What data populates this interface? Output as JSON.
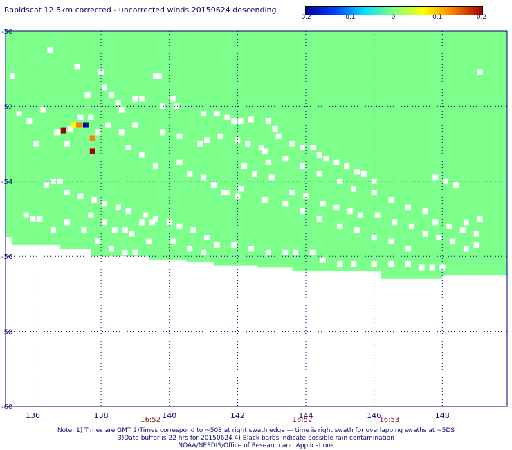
{
  "title": "Rapidscat 12.5km corrected - uncorrected winds 20150624 descending",
  "colorbar": {
    "ticks": [
      "-0.2",
      "-0.1",
      "0",
      "0.1",
      "0.2"
    ],
    "colors": [
      "#0000a0",
      "#0040ff",
      "#00e0ff",
      "#80ff80",
      "#ffff00",
      "#ff8000",
      "#a00000"
    ]
  },
  "chart_data": {
    "type": "heatmap",
    "xlim": [
      135.2,
      149.9
    ],
    "ylim": [
      -60,
      -50
    ],
    "x_ticks": [
      "136",
      "138",
      "140",
      "142",
      "144",
      "146",
      "148"
    ],
    "y_ticks": [
      "-50",
      "-52",
      "-54",
      "-56",
      "-58",
      "-60"
    ],
    "grid": true,
    "background_value": 0,
    "coverage_lower_edge": [
      [
        135.2,
        -55.5
      ],
      [
        135.4,
        -55.5
      ],
      [
        135.4,
        -55.7
      ],
      [
        136.8,
        -55.7
      ],
      [
        136.8,
        -55.8
      ],
      [
        137.7,
        -55.8
      ],
      [
        137.7,
        -56.0
      ],
      [
        139.4,
        -56.0
      ],
      [
        139.4,
        -56.1
      ],
      [
        140.5,
        -56.1
      ],
      [
        140.5,
        -56.15
      ],
      [
        141.3,
        -56.15
      ],
      [
        141.3,
        -56.25
      ],
      [
        142.6,
        -56.25
      ],
      [
        142.6,
        -56.3
      ],
      [
        143.6,
        -56.3
      ],
      [
        143.6,
        -56.4
      ],
      [
        146.2,
        -56.4
      ],
      [
        146.2,
        -56.6
      ],
      [
        148.0,
        -56.6
      ],
      [
        148.0,
        -56.5
      ],
      [
        149.9,
        -56.5
      ]
    ],
    "missing_cells": [
      [
        135.4,
        -51.2
      ],
      [
        136.5,
        -50.5
      ],
      [
        137.3,
        -50.95
      ],
      [
        138.0,
        -51.1
      ],
      [
        138.1,
        -51.5
      ],
      [
        137.6,
        -51.7
      ],
      [
        137.7,
        -52.3
      ],
      [
        138.3,
        -51.7
      ],
      [
        138.5,
        -51.9
      ],
      [
        138.6,
        -52.1
      ],
      [
        139.0,
        -51.8
      ],
      [
        139.2,
        -51.8
      ],
      [
        139.6,
        -51.2
      ],
      [
        139.7,
        -51.2
      ],
      [
        139.8,
        -52.0
      ],
      [
        140.1,
        -51.8
      ],
      [
        140.2,
        -52.0
      ],
      [
        141.0,
        -52.2
      ],
      [
        141.4,
        -52.2
      ],
      [
        141.7,
        -52.3
      ],
      [
        141.9,
        -52.4
      ],
      [
        142.1,
        -52.4
      ],
      [
        142.4,
        -52.35
      ],
      [
        142.9,
        -52.4
      ],
      [
        143.1,
        -52.6
      ],
      [
        143.2,
        -52.8
      ],
      [
        143.6,
        -53.0
      ],
      [
        143.9,
        -53.1
      ],
      [
        144.2,
        -53.1
      ],
      [
        144.4,
        -53.3
      ],
      [
        144.6,
        -53.4
      ],
      [
        144.9,
        -53.5
      ],
      [
        145.2,
        -53.6
      ],
      [
        145.5,
        -53.75
      ],
      [
        145.7,
        -53.8
      ],
      [
        146.0,
        -54.0
      ],
      [
        147.8,
        -53.9
      ],
      [
        148.1,
        -54.0
      ],
      [
        148.4,
        -54.1
      ],
      [
        149.1,
        -51.1
      ],
      [
        135.6,
        -52.2
      ],
      [
        135.9,
        -52.4
      ],
      [
        136.3,
        -52.1
      ],
      [
        136.1,
        -53.0
      ],
      [
        136.4,
        -54.1
      ],
      [
        136.6,
        -54.0
      ],
      [
        136.8,
        -54.0
      ],
      [
        137.0,
        -54.3
      ],
      [
        137.4,
        -54.4
      ],
      [
        137.8,
        -54.5
      ],
      [
        138.1,
        -54.6
      ],
      [
        138.5,
        -54.7
      ],
      [
        138.8,
        -54.8
      ],
      [
        139.3,
        -54.9
      ],
      [
        139.6,
        -55.0
      ],
      [
        140.0,
        -55.1
      ],
      [
        140.3,
        -55.2
      ],
      [
        140.7,
        -55.3
      ],
      [
        141.1,
        -55.5
      ],
      [
        141.4,
        -55.7
      ],
      [
        141.9,
        -55.7
      ],
      [
        142.4,
        -55.8
      ],
      [
        142.9,
        -55.9
      ],
      [
        143.4,
        -55.9
      ],
      [
        143.7,
        -55.9
      ],
      [
        144.2,
        -55.9
      ],
      [
        144.5,
        -56.1
      ],
      [
        145.0,
        -56.2
      ],
      [
        145.4,
        -56.2
      ],
      [
        146.0,
        -56.2
      ],
      [
        146.5,
        -56.2
      ],
      [
        147.0,
        -56.2
      ],
      [
        147.4,
        -56.3
      ],
      [
        147.7,
        -56.3
      ],
      [
        148.0,
        -56.3
      ],
      [
        148.7,
        -55.8
      ],
      [
        149.0,
        -55.7
      ],
      [
        135.8,
        -54.9
      ],
      [
        136.0,
        -55.0
      ],
      [
        136.2,
        -55.0
      ],
      [
        136.6,
        -55.3
      ],
      [
        137.0,
        -55.1
      ],
      [
        137.5,
        -55.3
      ],
      [
        137.9,
        -55.6
      ],
      [
        138.3,
        -55.8
      ],
      [
        138.7,
        -55.9
      ],
      [
        139.0,
        -55.9
      ],
      [
        138.7,
        -55.3
      ],
      [
        139.2,
        -55.1
      ],
      [
        139.5,
        -55.1
      ],
      [
        140.1,
        -55.6
      ],
      [
        140.6,
        -55.8
      ],
      [
        141.0,
        -55.9
      ],
      [
        141.7,
        -54.3
      ],
      [
        142.1,
        -54.2
      ],
      [
        142.5,
        -53.8
      ],
      [
        143.0,
        -53.9
      ],
      [
        143.6,
        -54.3
      ],
      [
        144.0,
        -54.4
      ],
      [
        144.5,
        -54.6
      ],
      [
        144.9,
        -54.7
      ],
      [
        145.3,
        -54.8
      ],
      [
        145.6,
        -54.9
      ],
      [
        146.1,
        -54.9
      ],
      [
        146.6,
        -55.1
      ],
      [
        147.1,
        -55.2
      ],
      [
        147.5,
        -55.4
      ],
      [
        147.9,
        -55.5
      ],
      [
        148.3,
        -55.6
      ],
      [
        148.7,
        -55.1
      ],
      [
        149.1,
        -55.0
      ],
      [
        137.7,
        -54.9
      ],
      [
        138.1,
        -55.1
      ],
      [
        138.4,
        -55.3
      ],
      [
        138.9,
        -55.4
      ],
      [
        139.4,
        -55.6
      ],
      [
        140.3,
        -53.5
      ],
      [
        140.6,
        -53.8
      ],
      [
        141.0,
        -53.9
      ],
      [
        141.3,
        -54.1
      ],
      [
        141.6,
        -54.3
      ],
      [
        142.0,
        -54.4
      ],
      [
        142.8,
        -54.5
      ],
      [
        143.4,
        -54.6
      ],
      [
        143.9,
        -54.8
      ],
      [
        144.4,
        -55.0
      ],
      [
        145.0,
        -55.2
      ],
      [
        145.5,
        -55.3
      ],
      [
        146.0,
        -55.5
      ],
      [
        146.5,
        -55.6
      ],
      [
        147.0,
        -55.8
      ],
      [
        142.8,
        -53.2
      ],
      [
        143.4,
        -53.4
      ],
      [
        143.9,
        -53.6
      ],
      [
        144.4,
        -53.8
      ],
      [
        145.0,
        -54.0
      ],
      [
        145.4,
        -54.2
      ],
      [
        146.0,
        -54.3
      ],
      [
        146.5,
        -54.5
      ],
      [
        147.0,
        -54.7
      ],
      [
        147.5,
        -54.8
      ],
      [
        147.8,
        -55.1
      ],
      [
        148.2,
        -55.2
      ],
      [
        148.6,
        -55.3
      ],
      [
        149.0,
        -55.4
      ],
      [
        139.2,
        -53.3
      ],
      [
        139.6,
        -53.6
      ],
      [
        138.8,
        -53.1
      ],
      [
        138.6,
        -52.7
      ],
      [
        139.0,
        -52.5
      ],
      [
        138.2,
        -52.5
      ],
      [
        137.9,
        -52.7
      ],
      [
        137.4,
        -52.3
      ],
      [
        137.1,
        -52.6
      ],
      [
        136.7,
        -52.7
      ],
      [
        137.0,
        -53.0
      ],
      [
        139.8,
        -52.7
      ],
      [
        140.3,
        -52.8
      ],
      [
        140.9,
        -53.0
      ],
      [
        141.1,
        -52.9
      ],
      [
        141.5,
        -52.8
      ],
      [
        142.0,
        -52.9
      ],
      [
        142.3,
        -53.0
      ],
      [
        142.7,
        -53.1
      ],
      [
        142.2,
        -53.6
      ],
      [
        142.9,
        -53.5
      ]
    ],
    "anomaly_cells": [
      {
        "x": 137.2,
        "y": -52.5,
        "value": 0.05
      },
      {
        "x": 137.35,
        "y": -52.5,
        "value": 0.1
      },
      {
        "x": 137.55,
        "y": -52.5,
        "value": -0.18
      },
      {
        "x": 136.9,
        "y": -52.65,
        "value": 0.2
      },
      {
        "x": 137.75,
        "y": -52.85,
        "value": 0.12
      },
      {
        "x": 137.75,
        "y": -53.2,
        "value": 0.2
      }
    ],
    "time_labels": [
      {
        "x": 139.45,
        "label": "16:52"
      },
      {
        "x": 143.9,
        "label": "16:52"
      },
      {
        "x": 146.45,
        "label": "16:53"
      }
    ]
  },
  "notes": [
    "Note: 1) Times are GMT 2)Times correspond to ~50S at right swath edge — time is right swath for overlapping swaths at ~5DS",
    "3)Data buffer is 22 hrs for 20150624 4) Black barbs indicate possible rain contamination",
    "NOAA/NESDIS/Office of Research and Applications"
  ]
}
